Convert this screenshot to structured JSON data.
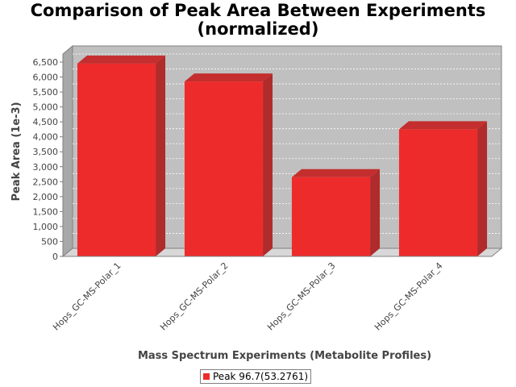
{
  "chart_data": {
    "type": "bar",
    "title_lines": [
      "Comparison of Peak Area Between Experiments",
      "(normalized)"
    ],
    "xlabel": "Mass Spectrum Experiments (Metabolite Profiles)",
    "ylabel": "Peak Area (1e-3)",
    "categories": [
      "Hops_GC-MS-Polar_1",
      "Hops_GC-MS-Polar_2",
      "Hops_GC-MS-Polar_3",
      "Hops_GC-MS-Polar_4"
    ],
    "series": [
      {
        "name": "Peak 96.7(53.2761)",
        "values": [
          6450,
          5850,
          2650,
          4250
        ],
        "color": "#ee2b2b"
      }
    ],
    "yticks": [
      "0",
      "500",
      "1,000",
      "1,500",
      "2,000",
      "2,500",
      "3,000",
      "3,500",
      "4,000",
      "4,500",
      "5,000",
      "5,500",
      "6,000",
      "6,500"
    ],
    "ylim": [
      0,
      6500
    ],
    "grid": true,
    "legend_position": "bottom",
    "style": "3d-bar",
    "plot_background": "#c0c0c0"
  }
}
